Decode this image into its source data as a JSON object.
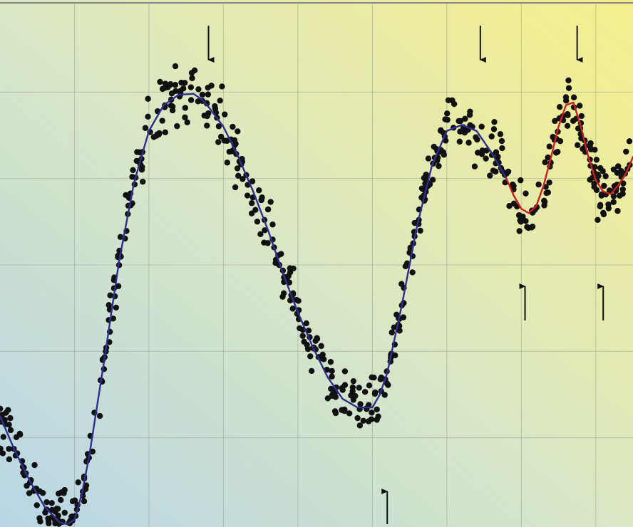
{
  "chart_data": {
    "type": "scatter",
    "title": "",
    "xlabel": "",
    "ylabel": "",
    "xlim": [
      0,
      8.5
    ],
    "ylim": [
      0,
      6
    ],
    "grid": true,
    "background": {
      "top_right": "#f5ef8a",
      "bottom_left": "#b7d6e6"
    },
    "series": [
      {
        "kind": "fit",
        "color": "#2e2f8c",
        "x": [
          0.0,
          0.2,
          0.4,
          0.6,
          0.8,
          0.9,
          1.0,
          1.1,
          1.2,
          1.4,
          1.6,
          1.8,
          2.0,
          2.2,
          2.4,
          2.6,
          2.7,
          2.8,
          3.0,
          3.2,
          3.4,
          3.6,
          3.8,
          4.0,
          4.2,
          4.4,
          4.6,
          4.8,
          5.0,
          5.1,
          5.2,
          5.4,
          5.6,
          5.8,
          6.0,
          6.2,
          6.4,
          6.6,
          6.8
        ],
        "y": [
          1.25,
          0.85,
          0.5,
          0.2,
          0.02,
          0.0,
          0.05,
          0.35,
          0.8,
          1.9,
          3.05,
          3.95,
          4.55,
          4.85,
          4.97,
          4.98,
          4.92,
          4.83,
          4.6,
          4.25,
          3.85,
          3.4,
          2.9,
          2.45,
          2.05,
          1.7,
          1.45,
          1.35,
          1.35,
          1.5,
          1.75,
          2.55,
          3.45,
          4.15,
          4.55,
          4.62,
          4.55,
          4.3,
          4.0
        ]
      },
      {
        "kind": "fit",
        "color": "#cc1f1f",
        "x": [
          6.8,
          6.9,
          7.0,
          7.1,
          7.2,
          7.3,
          7.4,
          7.5,
          7.6,
          7.7,
          7.8,
          7.9,
          8.0,
          8.1,
          8.2,
          8.3,
          8.4,
          8.5
        ],
        "y": [
          4.0,
          3.8,
          3.65,
          3.6,
          3.68,
          3.92,
          4.25,
          4.6,
          4.85,
          4.88,
          4.6,
          4.25,
          3.98,
          3.85,
          3.82,
          3.92,
          4.05,
          4.25
        ]
      },
      {
        "kind": "observations",
        "color": "#111111",
        "noise": 0.32
      }
    ],
    "annotations": {
      "down_arrows_x": [
        2.8,
        6.45,
        7.75
      ],
      "up_arrows_x": [
        5.2,
        7.05,
        8.1
      ]
    }
  }
}
